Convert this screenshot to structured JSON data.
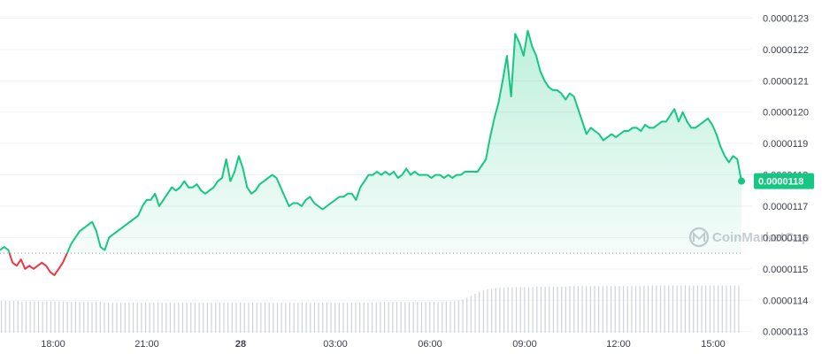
{
  "chart_data": {
    "type": "line",
    "y_ticks": [
      "0.0000113",
      "0.0000114",
      "0.0000115",
      "0.0000116",
      "0.0000117",
      "0.0000118",
      "0.0000119",
      "0.0000120",
      "0.0000121",
      "0.0000122",
      "0.0000123"
    ],
    "x_ticks": [
      "18:00",
      "21:00",
      "28",
      "03:00",
      "06:00",
      "09:00",
      "12:00",
      "15:00"
    ],
    "ylim": [
      1.125e-05,
      1.234e-05
    ],
    "reference_price": 1.155e-05,
    "current_price_label": "0.0000118",
    "watermark": "CoinMarketCap",
    "grid": true,
    "colors": {
      "up": "#16c784",
      "down": "#ea3943",
      "volume": "#cfd3db",
      "grid": "#eff2f5"
    },
    "series": [
      {
        "values": [
          1.156e-05,
          1.157e-05,
          1.156e-05,
          1.152e-05,
          1.151e-05,
          1.153e-05,
          1.15e-05,
          1.151e-05,
          1.15e-05,
          1.151e-05,
          1.152e-05,
          1.151e-05,
          1.149e-05,
          1.148e-05,
          1.15e-05,
          1.152e-05,
          1.155e-05,
          1.158e-05,
          1.16e-05,
          1.162e-05,
          1.163e-05,
          1.164e-05,
          1.165e-05,
          1.162e-05,
          1.157e-05,
          1.156e-05,
          1.16e-05,
          1.161e-05,
          1.162e-05,
          1.163e-05,
          1.164e-05,
          1.165e-05,
          1.166e-05,
          1.167e-05,
          1.17e-05,
          1.172e-05,
          1.172e-05,
          1.174e-05,
          1.17e-05,
          1.172e-05,
          1.174e-05,
          1.176e-05,
          1.175e-05,
          1.176e-05,
          1.178e-05,
          1.176e-05,
          1.176e-05,
          1.177e-05,
          1.175e-05,
          1.174e-05,
          1.175e-05,
          1.176e-05,
          1.178e-05,
          1.179e-05,
          1.185e-05,
          1.178e-05,
          1.181e-05,
          1.186e-05,
          1.182e-05,
          1.176e-05,
          1.174e-05,
          1.175e-05,
          1.177e-05,
          1.178e-05,
          1.179e-05,
          1.18e-05,
          1.179e-05,
          1.176e-05,
          1.173e-05,
          1.17e-05,
          1.171e-05,
          1.171e-05,
          1.17e-05,
          1.172e-05,
          1.173e-05,
          1.171e-05,
          1.17e-05,
          1.169e-05,
          1.17e-05,
          1.171e-05,
          1.172e-05,
          1.173e-05,
          1.173e-05,
          1.174e-05,
          1.174e-05,
          1.172e-05,
          1.176e-05,
          1.178e-05,
          1.18e-05,
          1.18e-05,
          1.181e-05,
          1.18e-05,
          1.181e-05,
          1.18e-05,
          1.181e-05,
          1.179e-05,
          1.18e-05,
          1.182e-05,
          1.18e-05,
          1.181e-05,
          1.18e-05,
          1.18e-05,
          1.18e-05,
          1.179e-05,
          1.18e-05,
          1.18e-05,
          1.179e-05,
          1.18e-05,
          1.179e-05,
          1.18e-05,
          1.18e-05,
          1.181e-05,
          1.181e-05,
          1.181e-05,
          1.181e-05,
          1.183e-05,
          1.185e-05,
          1.192e-05,
          1.198e-05,
          1.203e-05,
          1.21e-05,
          1.218e-05,
          1.205e-05,
          1.225e-05,
          1.222e-05,
          1.218e-05,
          1.226e-05,
          1.221e-05,
          1.218e-05,
          1.213e-05,
          1.21e-05,
          1.208e-05,
          1.207e-05,
          1.207e-05,
          1.206e-05,
          1.204e-05,
          1.206e-05,
          1.205e-05,
          1.201e-05,
          1.197e-05,
          1.193e-05,
          1.195e-05,
          1.194e-05,
          1.193e-05,
          1.191e-05,
          1.192e-05,
          1.193e-05,
          1.192e-05,
          1.193e-05,
          1.194e-05,
          1.194e-05,
          1.195e-05,
          1.195e-05,
          1.194e-05,
          1.196e-05,
          1.195e-05,
          1.195e-05,
          1.196e-05,
          1.197e-05,
          1.197e-05,
          1.199e-05,
          1.201e-05,
          1.197e-05,
          1.2e-05,
          1.197e-05,
          1.195e-05,
          1.195e-05,
          1.196e-05,
          1.197e-05,
          1.198e-05,
          1.196e-05,
          1.193e-05,
          1.189e-05,
          1.186e-05,
          1.184e-05,
          1.186e-05,
          1.185e-05,
          1.178e-05
        ]
      }
    ],
    "volume_values": [
      0.62,
      0.62,
      0.62,
      0.62,
      0.62,
      0.61,
      0.61,
      0.61,
      0.61,
      0.61,
      0.61,
      0.61,
      0.61,
      0.61,
      0.61,
      0.61,
      0.6,
      0.6,
      0.6,
      0.6,
      0.6,
      0.6,
      0.6,
      0.6,
      0.6,
      0.59,
      0.59,
      0.59,
      0.59,
      0.59,
      0.59,
      0.59,
      0.59,
      0.59,
      0.59,
      0.59,
      0.59,
      0.59,
      0.59,
      0.59,
      0.59,
      0.59,
      0.59,
      0.59,
      0.59,
      0.59,
      0.59,
      0.59,
      0.59,
      0.59,
      0.59,
      0.59,
      0.59,
      0.59,
      0.59,
      0.59,
      0.59,
      0.59,
      0.59,
      0.59,
      0.59,
      0.59,
      0.59,
      0.59,
      0.59,
      0.59,
      0.59,
      0.59,
      0.59,
      0.59,
      0.59,
      0.59,
      0.59,
      0.59,
      0.59,
      0.59,
      0.59,
      0.59,
      0.59,
      0.59,
      0.59,
      0.59,
      0.59,
      0.59,
      0.59,
      0.59,
      0.59,
      0.59,
      0.59,
      0.59,
      0.59,
      0.59,
      0.6,
      0.6,
      0.6,
      0.6,
      0.6,
      0.6,
      0.6,
      0.6,
      0.6,
      0.6,
      0.6,
      0.6,
      0.6,
      0.6,
      0.6,
      0.6,
      0.61,
      0.61,
      0.62,
      0.63,
      0.65,
      0.68,
      0.72,
      0.76,
      0.8,
      0.83,
      0.85,
      0.86,
      0.87,
      0.88,
      0.88,
      0.89,
      0.89,
      0.89,
      0.89,
      0.89,
      0.89,
      0.89,
      0.9,
      0.9,
      0.9,
      0.9,
      0.9,
      0.9,
      0.9,
      0.9,
      0.91,
      0.91,
      0.91,
      0.91,
      0.91,
      0.91,
      0.91,
      0.91,
      0.91,
      0.91,
      0.91,
      0.91,
      0.91,
      0.91,
      0.91,
      0.91,
      0.91,
      0.91,
      0.91,
      0.92,
      0.92,
      0.92,
      0.92,
      0.92,
      0.92,
      0.92,
      0.92,
      0.92,
      0.92,
      0.92,
      0.92,
      0.92,
      0.92,
      0.92,
      0.92,
      0.92,
      0.92,
      0.92,
      0.92,
      0.92,
      0.92,
      0.92
    ]
  }
}
